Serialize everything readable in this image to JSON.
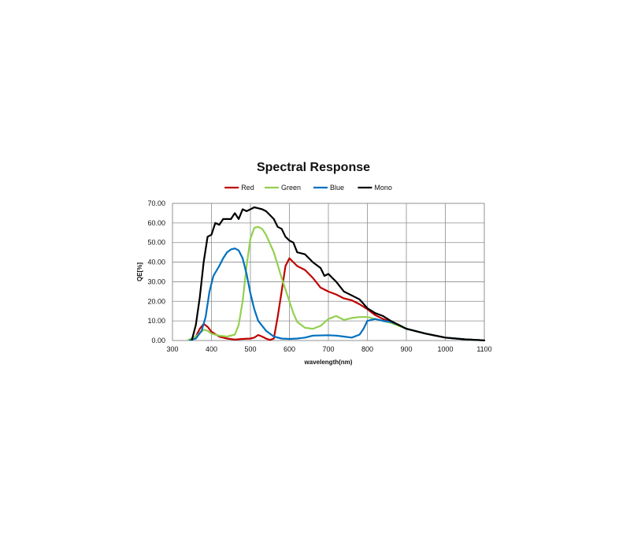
{
  "chart_data": {
    "type": "line",
    "title": "Spectral Response",
    "xlabel": "wavelength(nm)",
    "ylabel": "QE[%]",
    "xlim": [
      300,
      1100
    ],
    "ylim": [
      0,
      70
    ],
    "x_ticks": [
      "300",
      "400",
      "500",
      "600",
      "700",
      "800",
      "900",
      "1000",
      "1100"
    ],
    "y_ticks": [
      "0.00",
      "10.00",
      "20.00",
      "30.00",
      "40.00",
      "50.00",
      "60.00",
      "70.00"
    ],
    "grid": true,
    "legend_position": "top",
    "series": [
      {
        "name": "Red",
        "color": "#c00000",
        "points": [
          [
            345,
            0.5
          ],
          [
            360,
            2
          ],
          [
            370,
            6
          ],
          [
            380,
            8.5
          ],
          [
            390,
            7
          ],
          [
            400,
            4.5
          ],
          [
            420,
            2
          ],
          [
            440,
            1
          ],
          [
            460,
            0.5
          ],
          [
            480,
            0.8
          ],
          [
            500,
            1
          ],
          [
            510,
            1.5
          ],
          [
            520,
            2.8
          ],
          [
            530,
            2
          ],
          [
            540,
            1
          ],
          [
            550,
            0.3
          ],
          [
            560,
            1
          ],
          [
            570,
            12
          ],
          [
            580,
            25
          ],
          [
            590,
            38
          ],
          [
            600,
            42
          ],
          [
            610,
            40
          ],
          [
            620,
            38
          ],
          [
            640,
            36
          ],
          [
            660,
            32
          ],
          [
            680,
            27
          ],
          [
            700,
            25
          ],
          [
            720,
            23.5
          ],
          [
            740,
            21.5
          ],
          [
            760,
            20.5
          ],
          [
            780,
            18.5
          ],
          [
            800,
            16
          ],
          [
            820,
            13
          ],
          [
            840,
            11
          ],
          [
            860,
            9.5
          ],
          [
            880,
            8
          ],
          [
            900,
            6
          ],
          [
            950,
            3.5
          ],
          [
            1000,
            1.5
          ],
          [
            1050,
            0.6
          ],
          [
            1100,
            0.1
          ]
        ]
      },
      {
        "name": "Green",
        "color": "#92d050",
        "points": [
          [
            340,
            0.2
          ],
          [
            360,
            2
          ],
          [
            380,
            5.5
          ],
          [
            390,
            5
          ],
          [
            400,
            3.5
          ],
          [
            420,
            2.5
          ],
          [
            440,
            2
          ],
          [
            460,
            3
          ],
          [
            470,
            8
          ],
          [
            480,
            20
          ],
          [
            490,
            38
          ],
          [
            500,
            52
          ],
          [
            510,
            57.5
          ],
          [
            520,
            58
          ],
          [
            530,
            57
          ],
          [
            540,
            54
          ],
          [
            560,
            45
          ],
          [
            580,
            32
          ],
          [
            600,
            20
          ],
          [
            610,
            14
          ],
          [
            620,
            9.5
          ],
          [
            640,
            6.5
          ],
          [
            660,
            6
          ],
          [
            680,
            7.5
          ],
          [
            700,
            11
          ],
          [
            720,
            12.5
          ],
          [
            740,
            10.5
          ],
          [
            760,
            11.5
          ],
          [
            780,
            12
          ],
          [
            800,
            12
          ],
          [
            820,
            11
          ],
          [
            840,
            10
          ],
          [
            860,
            9
          ],
          [
            880,
            7.5
          ],
          [
            900,
            6
          ],
          [
            950,
            3.5
          ],
          [
            1000,
            1.5
          ],
          [
            1050,
            0.6
          ],
          [
            1100,
            0.1
          ]
        ]
      },
      {
        "name": "Blue",
        "color": "#0070c0",
        "points": [
          [
            345,
            0.2
          ],
          [
            360,
            1
          ],
          [
            375,
            5
          ],
          [
            385,
            12
          ],
          [
            395,
            25
          ],
          [
            405,
            33
          ],
          [
            420,
            38
          ],
          [
            430,
            42
          ],
          [
            440,
            45
          ],
          [
            450,
            46.5
          ],
          [
            460,
            47
          ],
          [
            470,
            46
          ],
          [
            480,
            42
          ],
          [
            490,
            34
          ],
          [
            500,
            24
          ],
          [
            510,
            16
          ],
          [
            520,
            10
          ],
          [
            540,
            5
          ],
          [
            560,
            2
          ],
          [
            580,
            1
          ],
          [
            600,
            0.8
          ],
          [
            620,
            1
          ],
          [
            640,
            1.5
          ],
          [
            660,
            2.5
          ],
          [
            700,
            2.7
          ],
          [
            720,
            2.5
          ],
          [
            740,
            2
          ],
          [
            760,
            1.5
          ],
          [
            780,
            3
          ],
          [
            790,
            6
          ],
          [
            800,
            10
          ],
          [
            820,
            11
          ],
          [
            840,
            10
          ],
          [
            860,
            9.5
          ],
          [
            880,
            8
          ],
          [
            900,
            6
          ],
          [
            950,
            3.5
          ],
          [
            1000,
            1.5
          ],
          [
            1050,
            0.6
          ],
          [
            1100,
            0.1
          ]
        ]
      },
      {
        "name": "Mono",
        "color": "#000000",
        "points": [
          [
            350,
            0.5
          ],
          [
            360,
            8
          ],
          [
            370,
            22
          ],
          [
            380,
            40
          ],
          [
            390,
            53
          ],
          [
            400,
            54
          ],
          [
            410,
            60
          ],
          [
            420,
            59
          ],
          [
            430,
            62
          ],
          [
            440,
            62
          ],
          [
            450,
            62
          ],
          [
            460,
            65
          ],
          [
            470,
            62
          ],
          [
            480,
            67
          ],
          [
            490,
            66
          ],
          [
            500,
            67
          ],
          [
            510,
            68
          ],
          [
            520,
            67.5
          ],
          [
            530,
            67
          ],
          [
            540,
            66
          ],
          [
            550,
            64
          ],
          [
            560,
            62
          ],
          [
            570,
            58
          ],
          [
            580,
            57
          ],
          [
            590,
            53
          ],
          [
            600,
            51
          ],
          [
            610,
            50
          ],
          [
            620,
            45
          ],
          [
            640,
            44
          ],
          [
            660,
            40
          ],
          [
            680,
            37
          ],
          [
            690,
            33
          ],
          [
            700,
            34
          ],
          [
            710,
            32
          ],
          [
            720,
            30
          ],
          [
            740,
            25
          ],
          [
            760,
            23
          ],
          [
            780,
            21
          ],
          [
            800,
            16.5
          ],
          [
            820,
            14
          ],
          [
            840,
            12.5
          ],
          [
            860,
            10
          ],
          [
            880,
            8
          ],
          [
            900,
            6
          ],
          [
            950,
            3.5
          ],
          [
            1000,
            1.5
          ],
          [
            1050,
            0.6
          ],
          [
            1100,
            0.1
          ]
        ]
      }
    ]
  }
}
